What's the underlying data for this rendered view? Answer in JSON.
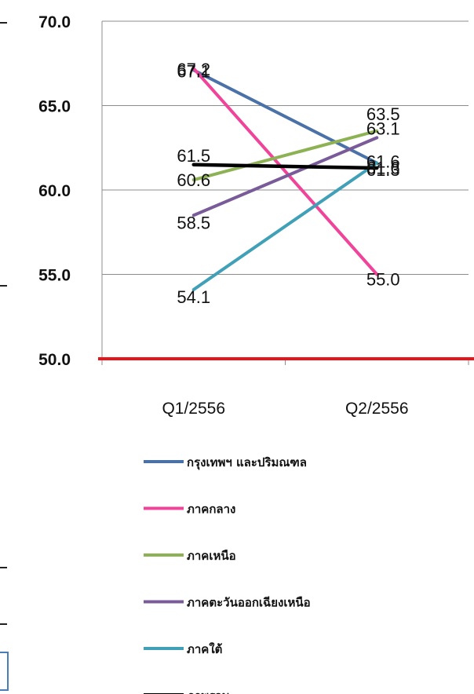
{
  "chart_data": {
    "type": "line",
    "categories": [
      "Q1/2556",
      "Q2/2556"
    ],
    "ylim": [
      50,
      70
    ],
    "y_ticks": [
      "50.0",
      "55.0",
      "60.0",
      "65.0",
      "70.0"
    ],
    "grid": true,
    "legend_position": "bottom",
    "reference_line": {
      "value": 50.0,
      "color": "#e8141b"
    },
    "series": [
      {
        "name": "กรุงเทพฯ และปริมณฑล",
        "color": "#4a72a8",
        "values": [
          67.1,
          61.6
        ],
        "labels": [
          "67.1",
          "61.6"
        ]
      },
      {
        "name": "ภาคกลาง",
        "color": "#f0439a",
        "values": [
          67.2,
          55.0
        ],
        "labels": [
          "67.2",
          "55.0"
        ]
      },
      {
        "name": "ภาคเหนือ",
        "color": "#8db253",
        "values": [
          60.6,
          63.5
        ],
        "labels": [
          "60.6",
          "63.5"
        ]
      },
      {
        "name": "ภาคตะวันออกเฉียงเหนือ",
        "color": "#7a5b9a",
        "values": [
          58.5,
          63.1
        ],
        "labels": [
          "58.5",
          "63.1"
        ]
      },
      {
        "name": "ภาคใต้",
        "color": "#3fa0b8",
        "values": [
          54.1,
          61.6
        ],
        "labels": [
          "54.1",
          "61.6"
        ]
      },
      {
        "name": "ภาพรวม",
        "color": "#000000",
        "values": [
          61.5,
          61.3
        ],
        "labels": [
          "61.5",
          "61.3"
        ]
      }
    ]
  }
}
